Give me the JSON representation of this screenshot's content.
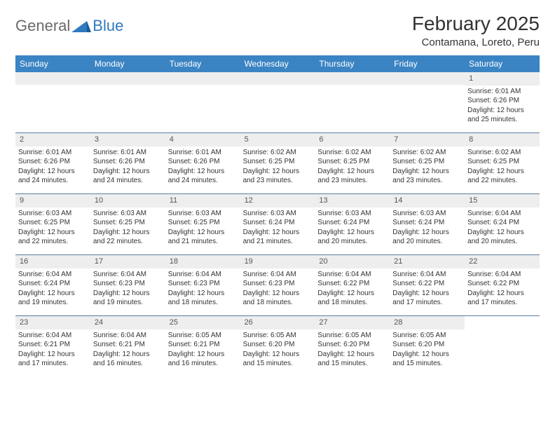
{
  "brand": {
    "text1": "General",
    "text2": "Blue"
  },
  "colors": {
    "header_bg": "#3b84c4",
    "row_divider": "#5a7ca0",
    "daynum_bg": "#eeeeee",
    "text": "#333333",
    "brand_gray": "#6a6a6a",
    "brand_blue": "#2f7ac0"
  },
  "title": "February 2025",
  "location": "Contamana, Loreto, Peru",
  "dow": [
    "Sunday",
    "Monday",
    "Tuesday",
    "Wednesday",
    "Thursday",
    "Friday",
    "Saturday"
  ],
  "weeks": [
    [
      null,
      null,
      null,
      null,
      null,
      null,
      {
        "n": "1",
        "sr": "Sunrise: 6:01 AM",
        "ss": "Sunset: 6:26 PM",
        "d1": "Daylight: 12 hours",
        "d2": "and 25 minutes."
      }
    ],
    [
      {
        "n": "2",
        "sr": "Sunrise: 6:01 AM",
        "ss": "Sunset: 6:26 PM",
        "d1": "Daylight: 12 hours",
        "d2": "and 24 minutes."
      },
      {
        "n": "3",
        "sr": "Sunrise: 6:01 AM",
        "ss": "Sunset: 6:26 PM",
        "d1": "Daylight: 12 hours",
        "d2": "and 24 minutes."
      },
      {
        "n": "4",
        "sr": "Sunrise: 6:01 AM",
        "ss": "Sunset: 6:26 PM",
        "d1": "Daylight: 12 hours",
        "d2": "and 24 minutes."
      },
      {
        "n": "5",
        "sr": "Sunrise: 6:02 AM",
        "ss": "Sunset: 6:25 PM",
        "d1": "Daylight: 12 hours",
        "d2": "and 23 minutes."
      },
      {
        "n": "6",
        "sr": "Sunrise: 6:02 AM",
        "ss": "Sunset: 6:25 PM",
        "d1": "Daylight: 12 hours",
        "d2": "and 23 minutes."
      },
      {
        "n": "7",
        "sr": "Sunrise: 6:02 AM",
        "ss": "Sunset: 6:25 PM",
        "d1": "Daylight: 12 hours",
        "d2": "and 23 minutes."
      },
      {
        "n": "8",
        "sr": "Sunrise: 6:02 AM",
        "ss": "Sunset: 6:25 PM",
        "d1": "Daylight: 12 hours",
        "d2": "and 22 minutes."
      }
    ],
    [
      {
        "n": "9",
        "sr": "Sunrise: 6:03 AM",
        "ss": "Sunset: 6:25 PM",
        "d1": "Daylight: 12 hours",
        "d2": "and 22 minutes."
      },
      {
        "n": "10",
        "sr": "Sunrise: 6:03 AM",
        "ss": "Sunset: 6:25 PM",
        "d1": "Daylight: 12 hours",
        "d2": "and 22 minutes."
      },
      {
        "n": "11",
        "sr": "Sunrise: 6:03 AM",
        "ss": "Sunset: 6:25 PM",
        "d1": "Daylight: 12 hours",
        "d2": "and 21 minutes."
      },
      {
        "n": "12",
        "sr": "Sunrise: 6:03 AM",
        "ss": "Sunset: 6:24 PM",
        "d1": "Daylight: 12 hours",
        "d2": "and 21 minutes."
      },
      {
        "n": "13",
        "sr": "Sunrise: 6:03 AM",
        "ss": "Sunset: 6:24 PM",
        "d1": "Daylight: 12 hours",
        "d2": "and 20 minutes."
      },
      {
        "n": "14",
        "sr": "Sunrise: 6:03 AM",
        "ss": "Sunset: 6:24 PM",
        "d1": "Daylight: 12 hours",
        "d2": "and 20 minutes."
      },
      {
        "n": "15",
        "sr": "Sunrise: 6:04 AM",
        "ss": "Sunset: 6:24 PM",
        "d1": "Daylight: 12 hours",
        "d2": "and 20 minutes."
      }
    ],
    [
      {
        "n": "16",
        "sr": "Sunrise: 6:04 AM",
        "ss": "Sunset: 6:24 PM",
        "d1": "Daylight: 12 hours",
        "d2": "and 19 minutes."
      },
      {
        "n": "17",
        "sr": "Sunrise: 6:04 AM",
        "ss": "Sunset: 6:23 PM",
        "d1": "Daylight: 12 hours",
        "d2": "and 19 minutes."
      },
      {
        "n": "18",
        "sr": "Sunrise: 6:04 AM",
        "ss": "Sunset: 6:23 PM",
        "d1": "Daylight: 12 hours",
        "d2": "and 18 minutes."
      },
      {
        "n": "19",
        "sr": "Sunrise: 6:04 AM",
        "ss": "Sunset: 6:23 PM",
        "d1": "Daylight: 12 hours",
        "d2": "and 18 minutes."
      },
      {
        "n": "20",
        "sr": "Sunrise: 6:04 AM",
        "ss": "Sunset: 6:22 PM",
        "d1": "Daylight: 12 hours",
        "d2": "and 18 minutes."
      },
      {
        "n": "21",
        "sr": "Sunrise: 6:04 AM",
        "ss": "Sunset: 6:22 PM",
        "d1": "Daylight: 12 hours",
        "d2": "and 17 minutes."
      },
      {
        "n": "22",
        "sr": "Sunrise: 6:04 AM",
        "ss": "Sunset: 6:22 PM",
        "d1": "Daylight: 12 hours",
        "d2": "and 17 minutes."
      }
    ],
    [
      {
        "n": "23",
        "sr": "Sunrise: 6:04 AM",
        "ss": "Sunset: 6:21 PM",
        "d1": "Daylight: 12 hours",
        "d2": "and 17 minutes."
      },
      {
        "n": "24",
        "sr": "Sunrise: 6:04 AM",
        "ss": "Sunset: 6:21 PM",
        "d1": "Daylight: 12 hours",
        "d2": "and 16 minutes."
      },
      {
        "n": "25",
        "sr": "Sunrise: 6:05 AM",
        "ss": "Sunset: 6:21 PM",
        "d1": "Daylight: 12 hours",
        "d2": "and 16 minutes."
      },
      {
        "n": "26",
        "sr": "Sunrise: 6:05 AM",
        "ss": "Sunset: 6:20 PM",
        "d1": "Daylight: 12 hours",
        "d2": "and 15 minutes."
      },
      {
        "n": "27",
        "sr": "Sunrise: 6:05 AM",
        "ss": "Sunset: 6:20 PM",
        "d1": "Daylight: 12 hours",
        "d2": "and 15 minutes."
      },
      {
        "n": "28",
        "sr": "Sunrise: 6:05 AM",
        "ss": "Sunset: 6:20 PM",
        "d1": "Daylight: 12 hours",
        "d2": "and 15 minutes."
      },
      null
    ]
  ]
}
